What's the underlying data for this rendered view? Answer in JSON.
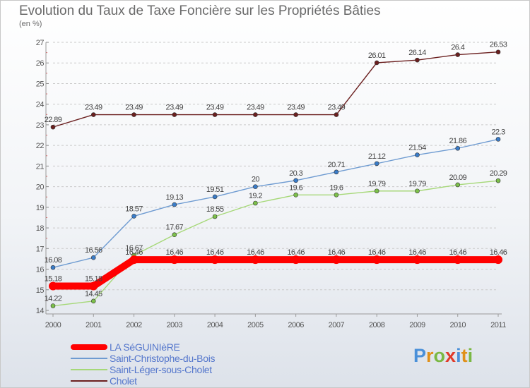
{
  "title": "Evolution du Taux de Taxe Foncière sur les Propriétés Bâties",
  "unit_label": "(en %)",
  "brand": {
    "letters": [
      {
        "ch": "P",
        "color": "#4a90d9"
      },
      {
        "ch": "r",
        "color": "#e0901a"
      },
      {
        "ch": "o",
        "color": "#7ab843"
      },
      {
        "ch": "x",
        "color": "#e03a2a"
      },
      {
        "ch": "i",
        "color": "#4a90d9"
      },
      {
        "ch": "t",
        "color": "#e0901a"
      },
      {
        "ch": "i",
        "color": "#7ab843"
      }
    ]
  },
  "chart_data": {
    "type": "line",
    "title": "Evolution du Taux de Taxe Foncière sur les Propriétés Bâties",
    "ylabel": "(en %)",
    "xlabel": "",
    "x": [
      "2000",
      "2001",
      "2002",
      "2003",
      "2004",
      "2005",
      "2006",
      "2007",
      "2008",
      "2009",
      "2010",
      "2011"
    ],
    "ylim": [
      14,
      27
    ],
    "yticks": [
      "14",
      "15",
      "16",
      "17",
      "18",
      "19",
      "20",
      "21",
      "22",
      "23",
      "24",
      "25",
      "26",
      "27"
    ],
    "grid": "horizontal dashed",
    "legend_position": "bottom-left",
    "series": [
      {
        "name": "Cholet",
        "color": "#6b1f1f",
        "values": [
          22.89,
          23.49,
          23.49,
          23.49,
          23.49,
          23.49,
          23.49,
          23.49,
          26.01,
          26.14,
          26.4,
          26.53
        ],
        "labels": [
          "22.89",
          "23.49",
          "23.49",
          "23.49",
          "23.49",
          "23.49",
          "23.49",
          "23.49",
          "26.01",
          "26.14",
          "26.4",
          "26.53"
        ]
      },
      {
        "name": "Saint-Christophe-du-Bois",
        "color": "#6e9bd1",
        "marker": "#3a7cc8",
        "values": [
          16.08,
          16.56,
          18.57,
          19.13,
          19.51,
          20,
          20.3,
          20.71,
          21.12,
          21.54,
          21.86,
          22.3
        ],
        "labels": [
          "16.08",
          "16.56",
          "18.57",
          "19.13",
          "19.51",
          "20",
          "20.3",
          "20.71",
          "21.12",
          "21.54",
          "21.86",
          "22.3"
        ]
      },
      {
        "name": "Saint-Léger-sous-Cholet",
        "color": "#a6d878",
        "marker": "#7cc04a",
        "values": [
          14.22,
          14.45,
          16.67,
          17.67,
          18.55,
          19.2,
          19.6,
          19.6,
          19.79,
          19.79,
          20.09,
          20.29
        ],
        "labels": [
          "14.22",
          "14.45",
          "16.67",
          "17.67",
          "18.55",
          "19.2",
          "19.6",
          "19.6",
          "19.79",
          "19.79",
          "20.09",
          "20.29"
        ]
      },
      {
        "name": "LA SéGUINIèRE",
        "color": "#ff0000",
        "values": [
          15.18,
          15.18,
          16.46,
          16.46,
          16.46,
          16.46,
          16.46,
          16.46,
          16.46,
          16.46,
          16.46,
          16.46
        ],
        "labels": [
          "15.18",
          "15.18",
          "16.46",
          "16.46",
          "16.46",
          "16.46",
          "16.46",
          "16.46",
          "16.46",
          "16.46",
          "16.46",
          "16.46"
        ]
      }
    ],
    "legend": [
      {
        "name": "LA SéGUINIèRE",
        "color": "#ff0000",
        "thick": true
      },
      {
        "name": "Saint-Christophe-du-Bois",
        "color": "#6e9bd1",
        "thick": false
      },
      {
        "name": "Saint-Léger-sous-Cholet",
        "color": "#a6d878",
        "thick": false
      },
      {
        "name": "Cholet",
        "color": "#6b1f1f",
        "thick": false
      }
    ]
  }
}
